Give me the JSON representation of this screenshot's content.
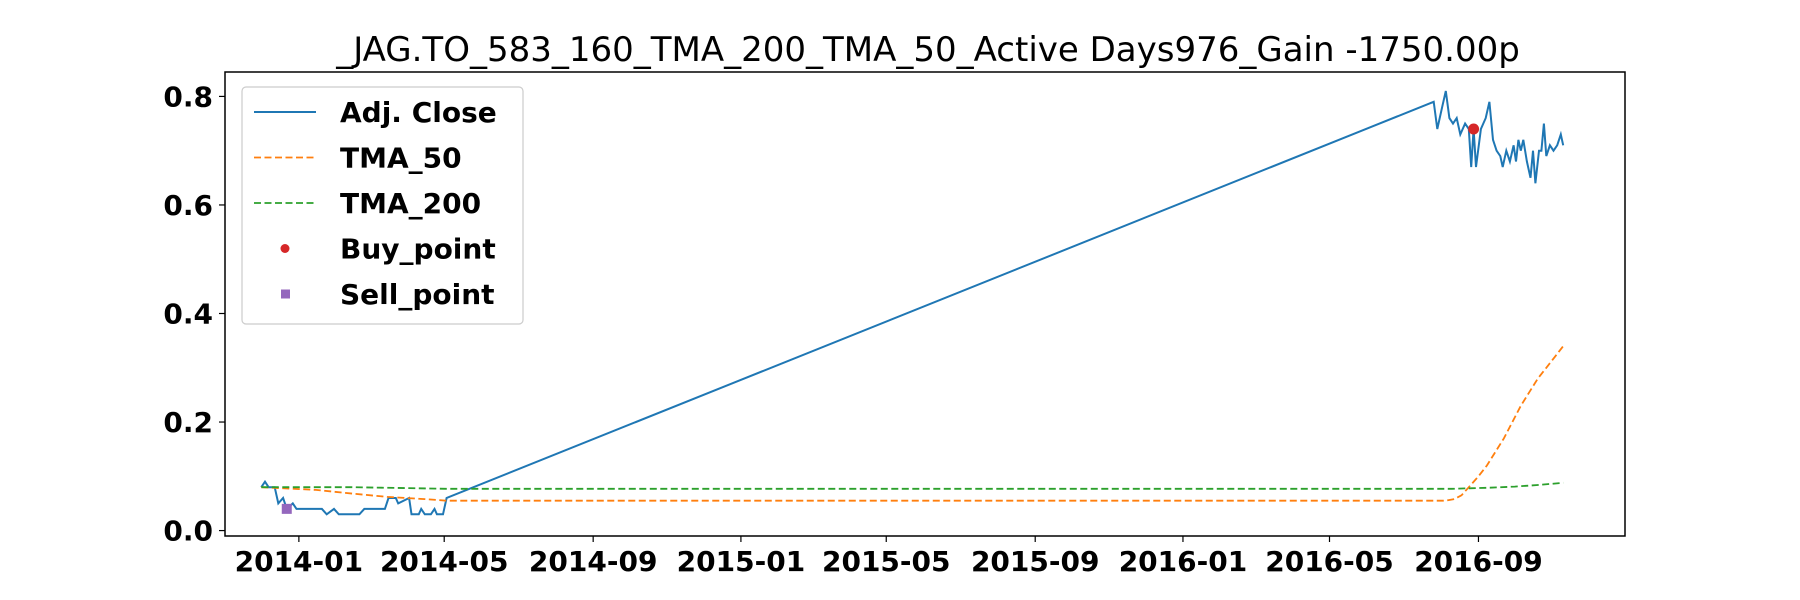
{
  "chart_data": {
    "type": "line",
    "title": "_JAG.TO_583_160_TMA_200_TMA_50_Active Days976_Gain -1750.00p",
    "xlabel": "",
    "ylabel": "",
    "x_ticks": [
      "2014-01",
      "2014-05",
      "2014-09",
      "2015-01",
      "2015-05",
      "2015-09",
      "2016-01",
      "2016-05",
      "2016-09"
    ],
    "y_ticks": [
      "0.0",
      "0.2",
      "0.4",
      "0.6",
      "0.8"
    ],
    "xlim": [
      "2013-11-01",
      "2016-12-31"
    ],
    "ylim": [
      -0.01,
      0.845
    ],
    "grid": false,
    "legend_position": "upper-left",
    "series": [
      {
        "name": "Adj. Close",
        "style": "solid",
        "color": "#1f77b4",
        "points": [
          [
            "2013-12-01",
            0.08
          ],
          [
            "2013-12-04",
            0.09
          ],
          [
            "2013-12-07",
            0.08
          ],
          [
            "2013-12-12",
            0.08
          ],
          [
            "2013-12-15",
            0.05
          ],
          [
            "2013-12-19",
            0.06
          ],
          [
            "2013-12-22",
            0.04
          ],
          [
            "2013-12-27",
            0.05
          ],
          [
            "2013-12-30",
            0.04
          ],
          [
            "2014-01-10",
            0.04
          ],
          [
            "2014-01-20",
            0.04
          ],
          [
            "2014-01-24",
            0.03
          ],
          [
            "2014-01-30",
            0.04
          ],
          [
            "2014-02-03",
            0.03
          ],
          [
            "2014-02-20",
            0.03
          ],
          [
            "2014-02-24",
            0.04
          ],
          [
            "2014-03-13",
            0.04
          ],
          [
            "2014-03-16",
            0.06
          ],
          [
            "2014-03-22",
            0.06
          ],
          [
            "2014-03-24",
            0.05
          ],
          [
            "2014-04-02",
            0.06
          ],
          [
            "2014-04-04",
            0.03
          ],
          [
            "2014-04-10",
            0.03
          ],
          [
            "2014-04-12",
            0.04
          ],
          [
            "2014-04-15",
            0.03
          ],
          [
            "2014-04-20",
            0.03
          ],
          [
            "2014-04-23",
            0.04
          ],
          [
            "2014-04-25",
            0.03
          ],
          [
            "2014-04-30",
            0.03
          ],
          [
            "2014-05-03",
            0.06
          ],
          [
            "2016-07-26",
            0.79
          ],
          [
            "2016-07-29",
            0.74
          ],
          [
            "2016-08-02",
            0.78
          ],
          [
            "2016-08-05",
            0.81
          ],
          [
            "2016-08-08",
            0.76
          ],
          [
            "2016-08-11",
            0.75
          ],
          [
            "2016-08-14",
            0.76
          ],
          [
            "2016-08-17",
            0.73
          ],
          [
            "2016-08-21",
            0.75
          ],
          [
            "2016-08-24",
            0.74
          ],
          [
            "2016-08-26",
            0.67
          ],
          [
            "2016-08-28",
            0.74
          ],
          [
            "2016-08-30",
            0.67
          ],
          [
            "2016-09-03",
            0.74
          ],
          [
            "2016-09-07",
            0.76
          ],
          [
            "2016-09-10",
            0.79
          ],
          [
            "2016-09-13",
            0.72
          ],
          [
            "2016-09-16",
            0.7
          ],
          [
            "2016-09-19",
            0.69
          ],
          [
            "2016-09-21",
            0.67
          ],
          [
            "2016-09-24",
            0.7
          ],
          [
            "2016-09-27",
            0.68
          ],
          [
            "2016-09-30",
            0.71
          ],
          [
            "2016-10-02",
            0.68
          ],
          [
            "2016-10-04",
            0.72
          ],
          [
            "2016-10-06",
            0.7
          ],
          [
            "2016-10-08",
            0.72
          ],
          [
            "2016-10-11",
            0.68
          ],
          [
            "2016-10-14",
            0.65
          ],
          [
            "2016-10-16",
            0.7
          ],
          [
            "2016-10-18",
            0.64
          ],
          [
            "2016-10-21",
            0.7
          ],
          [
            "2016-10-23",
            0.7
          ],
          [
            "2016-10-25",
            0.75
          ],
          [
            "2016-10-27",
            0.69
          ],
          [
            "2016-10-30",
            0.71
          ],
          [
            "2016-11-02",
            0.7
          ],
          [
            "2016-11-05",
            0.71
          ],
          [
            "2016-11-08",
            0.73
          ],
          [
            "2016-11-10",
            0.71
          ]
        ]
      },
      {
        "name": "TMA_50",
        "style": "dashed",
        "color": "#ff7f0e",
        "points": [
          [
            "2013-12-01",
            0.08
          ],
          [
            "2014-01-15",
            0.075
          ],
          [
            "2014-02-15",
            0.068
          ],
          [
            "2014-03-15",
            0.062
          ],
          [
            "2014-04-15",
            0.058
          ],
          [
            "2014-05-03",
            0.055
          ],
          [
            "2016-08-05",
            0.055
          ],
          [
            "2016-08-12",
            0.058
          ],
          [
            "2016-08-18",
            0.065
          ],
          [
            "2016-08-24",
            0.08
          ],
          [
            "2016-09-01",
            0.1
          ],
          [
            "2016-09-08",
            0.12
          ],
          [
            "2016-09-15",
            0.145
          ],
          [
            "2016-09-22",
            0.17
          ],
          [
            "2016-09-29",
            0.2
          ],
          [
            "2016-10-06",
            0.23
          ],
          [
            "2016-10-13",
            0.255
          ],
          [
            "2016-10-20",
            0.28
          ],
          [
            "2016-10-27",
            0.3
          ],
          [
            "2016-11-03",
            0.32
          ],
          [
            "2016-11-10",
            0.34
          ]
        ]
      },
      {
        "name": "TMA_200",
        "style": "dashed",
        "color": "#2ca02c",
        "points": [
          [
            "2013-12-01",
            0.08
          ],
          [
            "2014-02-15",
            0.08
          ],
          [
            "2014-05-03",
            0.077
          ],
          [
            "2016-08-10",
            0.077
          ],
          [
            "2016-09-10",
            0.079
          ],
          [
            "2016-10-01",
            0.081
          ],
          [
            "2016-10-20",
            0.084
          ],
          [
            "2016-11-10",
            0.088
          ]
        ]
      },
      {
        "name": "Buy_point",
        "style": "marker-circle",
        "color": "#d62728",
        "points": [
          [
            "2016-08-28",
            0.74
          ]
        ]
      },
      {
        "name": "Sell_point",
        "style": "marker-square",
        "color": "#9467bd",
        "points": [
          [
            "2013-12-22",
            0.04
          ]
        ]
      }
    ]
  }
}
